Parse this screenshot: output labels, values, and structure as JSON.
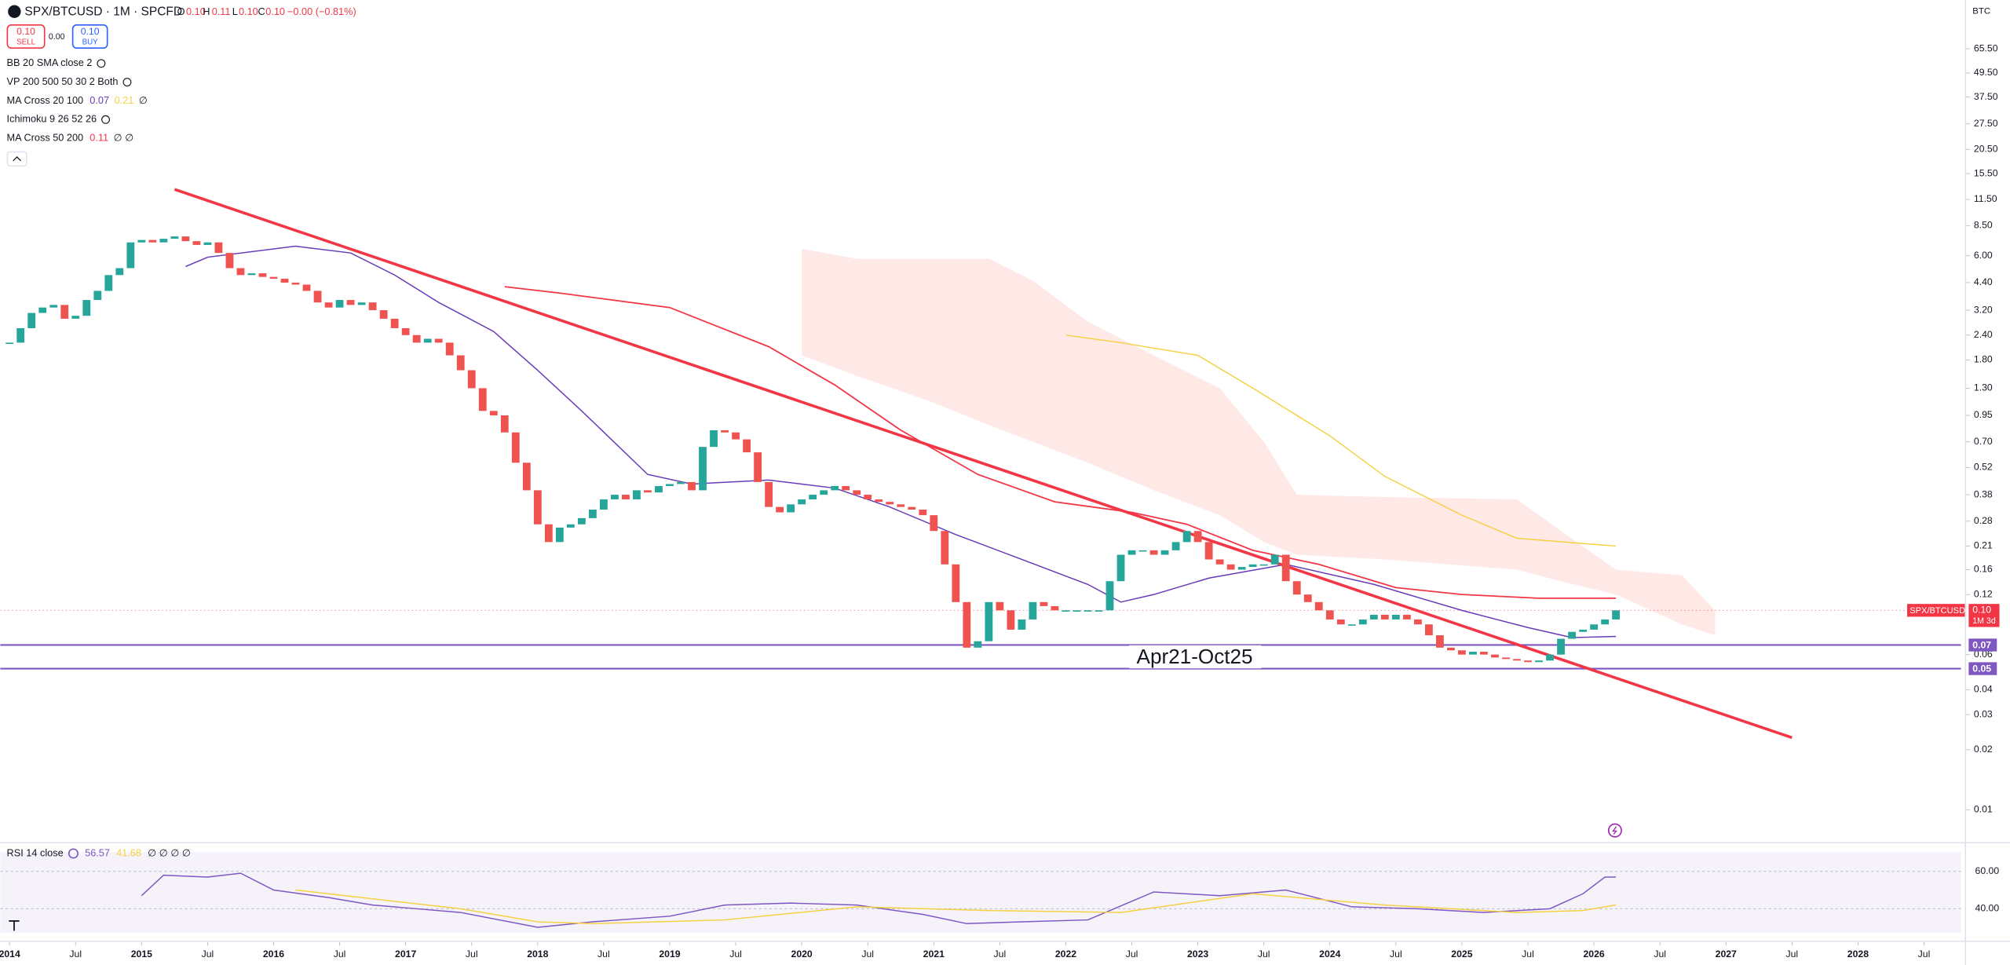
{
  "header": {
    "symbol": "SPX/BTCUSD · 1M · SPCFD",
    "ohlc": [
      {
        "key": "O",
        "value": "0.10"
      },
      {
        "key": "H",
        "value": "0.11"
      },
      {
        "key": "L",
        "value": "0.10"
      },
      {
        "key": "C",
        "value": "0.10"
      }
    ],
    "change": "−0.00 (−0.81%)",
    "sell": {
      "price": "0.10",
      "label": "SELL"
    },
    "spread": "0.00",
    "buy": {
      "price": "0.10",
      "label": "BUY"
    }
  },
  "indicators": [
    {
      "name": "BB 20 SMA close 2",
      "values": []
    },
    {
      "name": "VP 200 500 50 30 2 Both",
      "values": []
    },
    {
      "name": "MA Cross 20 100",
      "values": [
        {
          "text": "0.07",
          "color": "#673ab7"
        },
        {
          "text": "0.21",
          "color": "#f5d142"
        },
        {
          "text": "∅",
          "color": "#131722"
        }
      ]
    },
    {
      "name": "Ichimoku 9 26 52 26",
      "values": []
    },
    {
      "name": "MA Cross 50 200",
      "values": [
        {
          "text": "0.11",
          "color": "#f23645"
        },
        {
          "text": "∅ ∅",
          "color": "#131722"
        }
      ]
    }
  ],
  "chart_data": [
    {
      "type": "candlestick",
      "unit_label": "BTC",
      "log_scale": true,
      "up_color": "#26a69a",
      "down_color": "#ef5350",
      "x": [
        "2014-01",
        "2014-02",
        "2014-03",
        "2014-04",
        "2014-05",
        "2014-06",
        "2014-07",
        "2014-08",
        "2014-09",
        "2014-10",
        "2014-11",
        "2014-12",
        "2015-01",
        "2015-02",
        "2015-03",
        "2015-04",
        "2015-05",
        "2015-06",
        "2015-07",
        "2015-08",
        "2015-09",
        "2015-10",
        "2015-11",
        "2015-12",
        "2016-01",
        "2016-02",
        "2016-03",
        "2016-04",
        "2016-05",
        "2016-06",
        "2016-07",
        "2016-08",
        "2016-09",
        "2016-10",
        "2016-11",
        "2016-12",
        "2017-01",
        "2017-02",
        "2017-03",
        "2017-04",
        "2017-05",
        "2017-06",
        "2017-07",
        "2017-08",
        "2017-09",
        "2017-10",
        "2017-11",
        "2017-12",
        "2018-01",
        "2018-02",
        "2018-03",
        "2018-04",
        "2018-05",
        "2018-06",
        "2018-07",
        "2018-08",
        "2018-09",
        "2018-10",
        "2018-11",
        "2018-12",
        "2019-01",
        "2019-02",
        "2019-03",
        "2019-04",
        "2019-05",
        "2019-06",
        "2019-07",
        "2019-08",
        "2019-09",
        "2019-10",
        "2019-11",
        "2019-12",
        "2020-01",
        "2020-02",
        "2020-03",
        "2020-04",
        "2020-05",
        "2020-06",
        "2020-07",
        "2020-08",
        "2020-09",
        "2020-10",
        "2020-11",
        "2020-12",
        "2021-01",
        "2021-02",
        "2021-03",
        "2021-04",
        "2021-05",
        "2021-06",
        "2021-07",
        "2021-08",
        "2021-09",
        "2021-10",
        "2021-11",
        "2021-12",
        "2022-01",
        "2022-02",
        "2022-03",
        "2022-04",
        "2022-05",
        "2022-06",
        "2022-07",
        "2022-08",
        "2022-09",
        "2022-10",
        "2022-11",
        "2022-12",
        "2023-01",
        "2023-02",
        "2023-03",
        "2023-04",
        "2023-05",
        "2023-06",
        "2023-07",
        "2023-08",
        "2023-09",
        "2023-10",
        "2023-11",
        "2023-12",
        "2024-01",
        "2024-02",
        "2024-03",
        "2024-04",
        "2024-05",
        "2024-06",
        "2024-07",
        "2024-08",
        "2024-09",
        "2024-10",
        "2024-11",
        "2024-12",
        "2025-01",
        "2025-02",
        "2025-03",
        "2025-04",
        "2025-05",
        "2025-06",
        "2025-07",
        "2025-08",
        "2025-09",
        "2025-10",
        "2025-11",
        "2025-12",
        "2026-01",
        "2026-02",
        "2026-03"
      ],
      "close": [
        2.2,
        2.6,
        3.1,
        3.3,
        3.4,
        2.9,
        3.0,
        3.6,
        4.0,
        4.8,
        5.2,
        7.0,
        7.2,
        7.0,
        7.3,
        7.5,
        7.1,
        6.8,
        7.0,
        6.2,
        5.2,
        4.8,
        4.9,
        4.7,
        4.6,
        4.4,
        4.3,
        4.0,
        3.5,
        3.3,
        3.6,
        3.4,
        3.5,
        3.2,
        2.9,
        2.6,
        2.4,
        2.2,
        2.3,
        2.2,
        1.9,
        1.6,
        1.3,
        1.0,
        0.95,
        0.78,
        0.55,
        0.4,
        0.27,
        0.22,
        0.26,
        0.27,
        0.29,
        0.32,
        0.36,
        0.38,
        0.36,
        0.4,
        0.39,
        0.42,
        0.43,
        0.44,
        0.4,
        0.66,
        0.8,
        0.78,
        0.72,
        0.62,
        0.44,
        0.33,
        0.31,
        0.34,
        0.36,
        0.38,
        0.4,
        0.42,
        0.4,
        0.38,
        0.36,
        0.35,
        0.34,
        0.33,
        0.32,
        0.3,
        0.25,
        0.17,
        0.11,
        0.065,
        0.07,
        0.11,
        0.1,
        0.08,
        0.09,
        0.11,
        0.105,
        0.1,
        0.1,
        0.1,
        0.1,
        0.1,
        0.14,
        0.19,
        0.2,
        0.2,
        0.19,
        0.2,
        0.22,
        0.25,
        0.22,
        0.18,
        0.17,
        0.16,
        0.165,
        0.17,
        0.17,
        0.19,
        0.14,
        0.12,
        0.11,
        0.1,
        0.09,
        0.085,
        0.085,
        0.09,
        0.095,
        0.09,
        0.095,
        0.09,
        0.085,
        0.075,
        0.065,
        0.063,
        0.06,
        0.062,
        0.06,
        0.058,
        0.057,
        0.056,
        0.055,
        0.056,
        0.06,
        0.072,
        0.078,
        0.08,
        0.085,
        0.09,
        0.1
      ],
      "lines": [
        {
          "color": "#673ab7",
          "x": [
            "2015-05",
            "2015-07",
            "2016-03",
            "2016-08",
            "2016-12",
            "2017-04",
            "2017-09",
            "2018-01",
            "2018-05",
            "2018-11",
            "2019-03",
            "2019-10",
            "2020-04",
            "2020-09",
            "2021-03",
            "2021-09",
            "2022-03",
            "2022-06",
            "2022-09",
            "2023-02",
            "2023-09",
            "2024-05",
            "2025-01",
            "2025-07",
            "2025-11",
            "2026-03"
          ],
          "values": [
            5.3,
            5.9,
            6.7,
            6.2,
            4.8,
            3.5,
            2.5,
            1.6,
            1.0,
            0.48,
            0.43,
            0.45,
            0.41,
            0.33,
            0.24,
            0.18,
            0.135,
            0.11,
            0.12,
            0.145,
            0.17,
            0.135,
            0.1,
            0.082,
            0.073,
            0.074
          ]
        },
        {
          "color": "#f23645",
          "x": [
            "2017-10",
            "2018-03",
            "2019-01",
            "2019-10",
            "2020-04",
            "2020-10",
            "2021-05",
            "2021-12",
            "2022-07",
            "2022-12",
            "2023-06",
            "2023-12",
            "2024-07",
            "2025-01",
            "2025-08",
            "2026-03"
          ],
          "values": [
            4.2,
            3.9,
            3.3,
            2.1,
            1.35,
            0.8,
            0.48,
            0.35,
            0.31,
            0.27,
            0.2,
            0.17,
            0.13,
            0.12,
            0.115,
            0.115
          ]
        },
        {
          "color": "#f5d142",
          "x": [
            "2022-01",
            "2022-06",
            "2023-01",
            "2023-06",
            "2024-01",
            "2024-06",
            "2025-01",
            "2025-06",
            "2026-03"
          ],
          "values": [
            2.4,
            2.2,
            1.9,
            1.3,
            0.75,
            0.47,
            0.3,
            0.23,
            0.21
          ]
        },
        {
          "color": "#f23645",
          "x": [
            "2015-04",
            "2027-07"
          ],
          "values": [
            12.9,
            0.023
          ]
        }
      ],
      "cloud": {
        "color": "#fde1de",
        "x": [
          "2020-01",
          "2020-06",
          "2021-01",
          "2021-06",
          "2021-10",
          "2022-03",
          "2022-09",
          "2023-03",
          "2023-07",
          "2023-10",
          "2024-06",
          "2025-06",
          "2025-10",
          "2026-03",
          "2026-09",
          "2026-12"
        ],
        "top": [
          6.5,
          5.8,
          5.8,
          5.8,
          4.5,
          2.8,
          1.9,
          1.3,
          0.7,
          0.38,
          0.37,
          0.36,
          0.25,
          0.16,
          0.15,
          0.1
        ],
        "bottom": [
          1.9,
          1.5,
          1.1,
          0.85,
          0.7,
          0.55,
          0.4,
          0.3,
          0.22,
          0.19,
          0.18,
          0.16,
          0.14,
          0.12,
          0.085,
          0.075
        ]
      },
      "hlines": [
        {
          "value": 0.067,
          "label": "0.07",
          "color": "#7e57c2"
        },
        {
          "value": 0.051,
          "label": "0.05",
          "color": "#7e57c2"
        }
      ],
      "annotation": "Apr21-Oct25",
      "last": {
        "symbol": "SPX/BTCUSD",
        "value": 0.1,
        "label": "0.10",
        "timer": "1M 3d",
        "color": "#f23645"
      },
      "xlim": [
        2013.93,
        2028.78
      ],
      "xticks": [
        2014,
        {
          "value": 2014.5,
          "label": "Jul"
        },
        2015,
        {
          "value": 2015.5,
          "label": "Jul"
        },
        2016,
        {
          "value": 2016.5,
          "label": "Jul"
        },
        2017,
        {
          "value": 2017.5,
          "label": "Jul"
        },
        2018,
        {
          "value": 2018.5,
          "label": "Jul"
        },
        2019,
        {
          "value": 2019.5,
          "label": "Jul"
        },
        2020,
        {
          "value": 2020.5,
          "label": "Jul"
        },
        2021,
        {
          "value": 2021.5,
          "label": "Jul"
        },
        2022,
        {
          "value": 2022.5,
          "label": "Jul"
        },
        2023,
        {
          "value": 2023.5,
          "label": "Jul"
        },
        2024,
        {
          "value": 2024.5,
          "label": "Jul"
        },
        2025,
        {
          "value": 2025.5,
          "label": "Jul"
        },
        2026,
        {
          "value": 2026.5,
          "label": "Jul"
        },
        2027,
        {
          "value": 2027.5,
          "label": "Jul"
        },
        2028,
        {
          "value": 2028.5,
          "label": "Jul"
        }
      ],
      "ylim": [
        0.0071,
        115
      ],
      "yticks": [
        {
          "value": 65.5,
          "label": "65.50"
        },
        {
          "value": 49.5,
          "label": "49.50"
        },
        {
          "value": 37.5,
          "label": "37.50"
        },
        {
          "value": 27.5,
          "label": "27.50"
        },
        {
          "value": 20.5,
          "label": "20.50"
        },
        {
          "value": 15.5,
          "label": "15.50"
        },
        {
          "value": 11.5,
          "label": "11.50"
        },
        {
          "value": 8.5,
          "label": "8.50"
        },
        {
          "value": 6,
          "label": "6.00"
        },
        {
          "value": 4.4,
          "label": "4.40"
        },
        {
          "value": 3.2,
          "label": "3.20"
        },
        {
          "value": 2.4,
          "label": "2.40"
        },
        {
          "value": 1.8,
          "label": "1.80"
        },
        {
          "value": 1.3,
          "label": "1.30"
        },
        0.95,
        {
          "value": 0.7,
          "label": "0.70"
        },
        0.52,
        0.38,
        0.28,
        0.21,
        0.16,
        0.12,
        0.06,
        0.04,
        0.03,
        0.02,
        0.01
      ],
      "grid": false
    },
    {
      "type": "line",
      "title": "RSI 14 close",
      "legend_values": [
        {
          "text": "56.57",
          "color": "#7e57c2"
        },
        {
          "text": "41.68",
          "color": "#f5d142"
        },
        {
          "text": "∅ ∅ ∅ ∅",
          "color": "#131722"
        }
      ],
      "series": [
        {
          "color": "#7e57c2",
          "x": [
            "2015-01",
            "2015-03",
            "2015-07",
            "2015-10",
            "2016-01",
            "2016-06",
            "2016-10",
            "2017-06",
            "2018-01",
            "2018-06",
            "2019-01",
            "2019-06",
            "2019-12",
            "2020-06",
            "2020-12",
            "2021-04",
            "2021-09",
            "2022-03",
            "2022-09",
            "2023-03",
            "2023-09",
            "2024-03",
            "2024-09",
            "2025-03",
            "2025-09",
            "2025-12",
            "2026-02",
            "2026-03"
          ],
          "values": [
            47,
            58,
            57,
            59,
            50,
            46,
            42,
            38,
            30,
            33,
            36,
            42,
            43,
            42,
            37,
            32,
            33,
            34,
            49,
            47,
            50,
            41,
            40,
            38,
            40,
            48,
            57,
            57
          ]
        },
        {
          "color": "#f5d142",
          "x": [
            "2016-03",
            "2016-09",
            "2017-06",
            "2018-01",
            "2018-06",
            "2019-06",
            "2020-06",
            "2021-06",
            "2022-06",
            "2023-06",
            "2024-06",
            "2025-06",
            "2025-12",
            "2026-03"
          ],
          "values": [
            50,
            46,
            40,
            33,
            32,
            34,
            41,
            39,
            38,
            48,
            42,
            38,
            39,
            42
          ]
        }
      ],
      "ylim": [
        27,
        70.3
      ],
      "yticks": [
        {
          "value": 60,
          "label": "60.00"
        },
        {
          "value": 40,
          "label": "40.00"
        }
      ]
    }
  ]
}
